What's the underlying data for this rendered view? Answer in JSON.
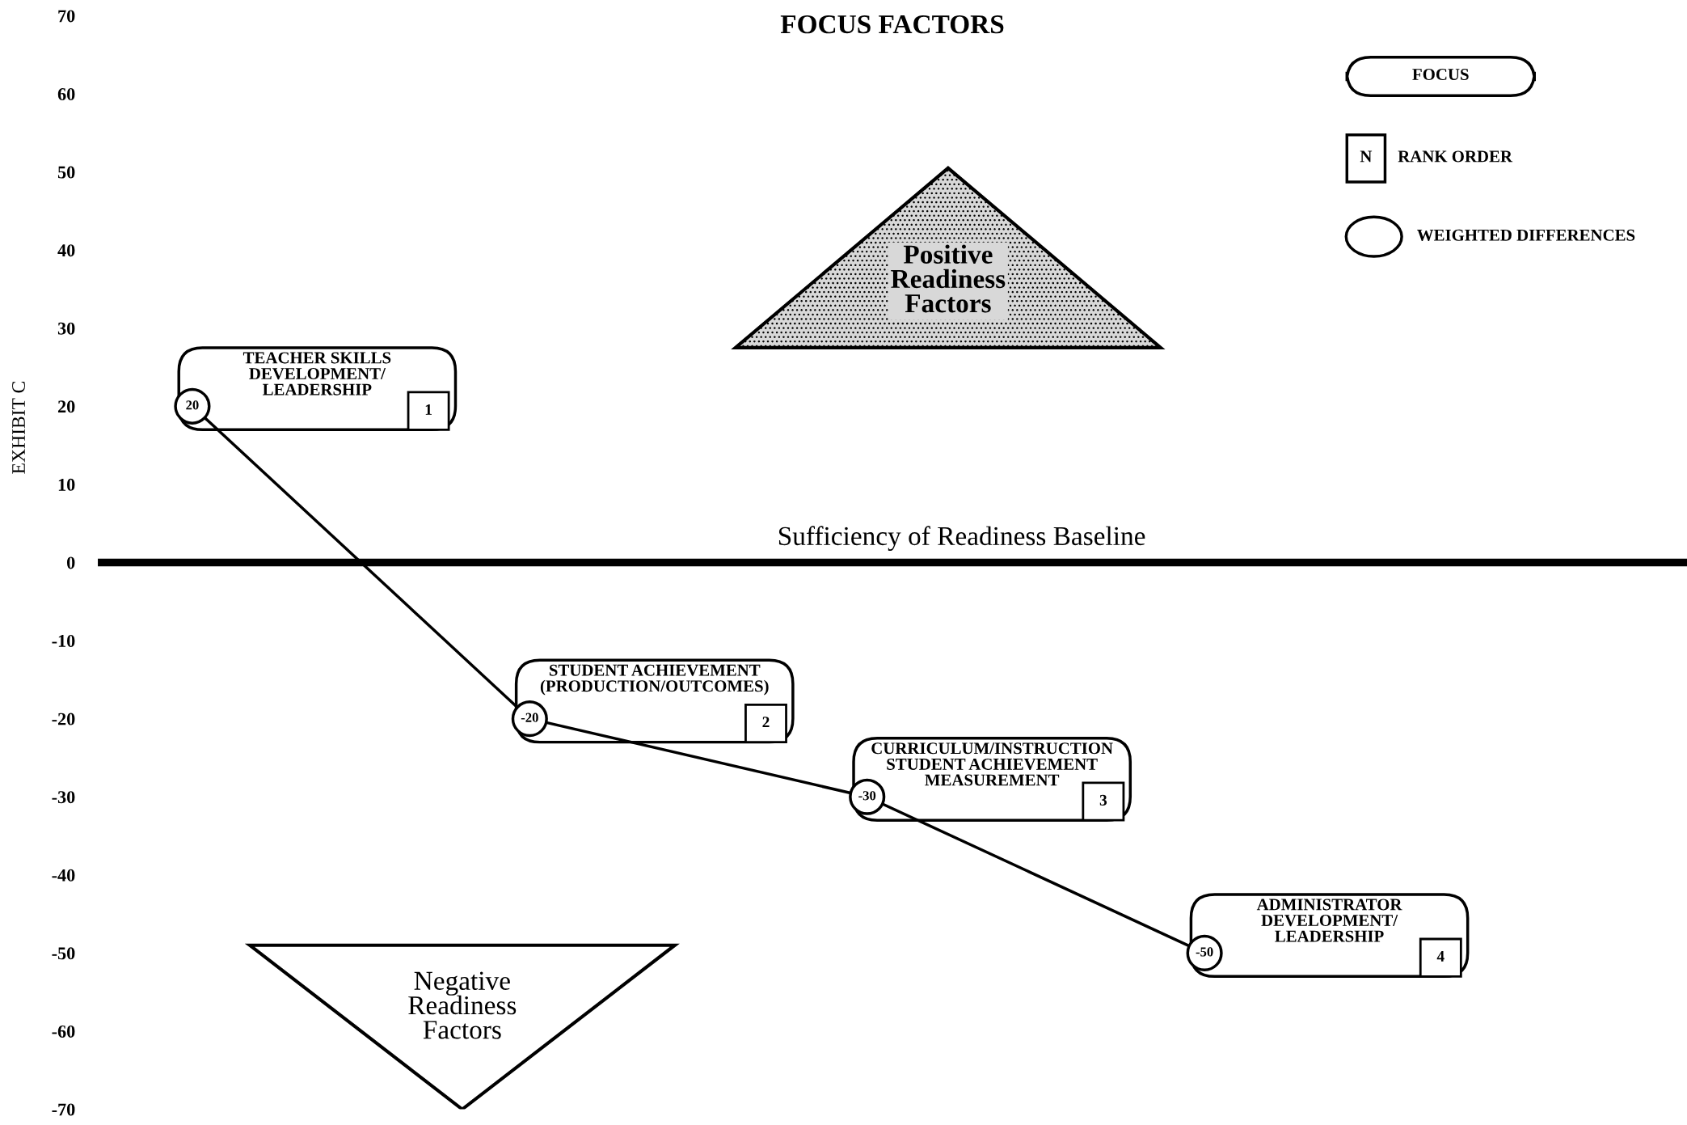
{
  "chart_data": {
    "type": "line",
    "title": "FOCUS FACTORS",
    "ylabel": "EXHIBIT C",
    "categories": [
      "TEACHER SKILLS\nDEVELOPMENT/\nLEADERSHIP",
      "STUDENT ACHIEVEMENT\n(PRODUCTION/OUTCOMES)",
      "CURRICULUM/INSTRUCTION\nSTUDENT ACHIEVEMENT\nMEASUREMENT",
      "ADMINISTRATOR\nDEVELOPMENT/\nLEADERSHIP"
    ],
    "series": [
      {
        "color": "#000000",
        "values": [
          20,
          -20,
          -30,
          -50
        ],
        "value_labels": [
          "20",
          "-20",
          "-30",
          "-50"
        ]
      }
    ],
    "ylim": [
      -70,
      70
    ],
    "yticks": [
      -70,
      -60,
      -50,
      -40,
      -30,
      -20,
      -10,
      0,
      10,
      20,
      30,
      40,
      50,
      60,
      70
    ],
    "marker": "circle",
    "line_style": "solid",
    "grid": false,
    "tick_labels": "y",
    "ref_lines": [
      {
        "axis": "y",
        "value": 0,
        "label": "Sufficiency of Readiness Baseline",
        "color": "#000000"
      }
    ],
    "annotations": [
      "Positive\nReadiness\nFactors",
      "Negative\nReadiness\nFactors",
      "FOCUS",
      "RANK ORDER",
      "WEIGHTED DIFFERENCES",
      "N",
      "1",
      "2",
      "3",
      "4"
    ]
  }
}
